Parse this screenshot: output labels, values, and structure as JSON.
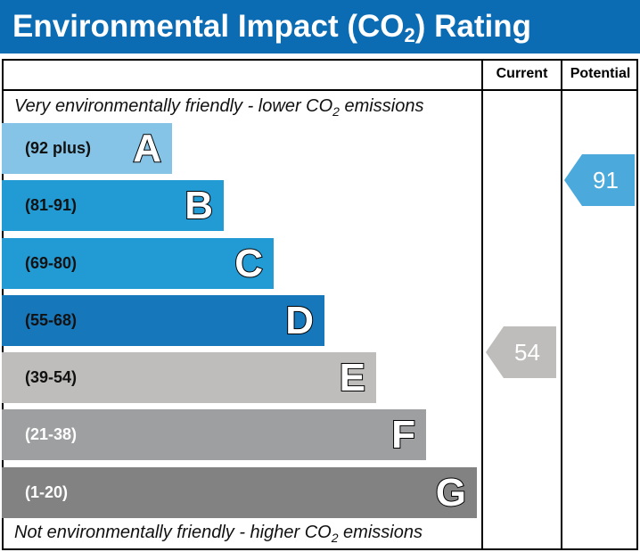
{
  "title": "Environmental Impact (CO2) Rating",
  "title_main": "Environmental Impact (CO",
  "title_sub": "2",
  "title_end": ") Rating",
  "columns": {
    "current": "Current",
    "potential": "Potential"
  },
  "top_note": {
    "pre": "Very environmentally friendly - lower CO",
    "sub": "2",
    "post": " emissions"
  },
  "bottom_note": {
    "pre": "Not environmentally friendly - higher CO",
    "sub": "2",
    "post": " emissions"
  },
  "bands": [
    {
      "letter": "A",
      "range": "(92 plus)",
      "color": "#85c4e7",
      "text_color": "#111111"
    },
    {
      "letter": "B",
      "range": "(81-91)",
      "color": "#229bd5",
      "text_color": "#111111"
    },
    {
      "letter": "C",
      "range": "(69-80)",
      "color": "#229bd5",
      "text_color": "#111111"
    },
    {
      "letter": "D",
      "range": "(55-68)",
      "color": "#1677bb",
      "text_color": "#111111"
    },
    {
      "letter": "E",
      "range": "(39-54)",
      "color": "#bebdbb",
      "text_color": "#111111"
    },
    {
      "letter": "F",
      "range": "(21-38)",
      "color": "#9e9fa1",
      "text_color": "#ffffff"
    },
    {
      "letter": "G",
      "range": "(1-20)",
      "color": "#828282",
      "text_color": "#ffffff"
    }
  ],
  "current": {
    "value": "54",
    "band": "E",
    "color": "#bebdbb"
  },
  "potential": {
    "value": "91",
    "band": "B",
    "color": "#4ba9dc"
  }
}
